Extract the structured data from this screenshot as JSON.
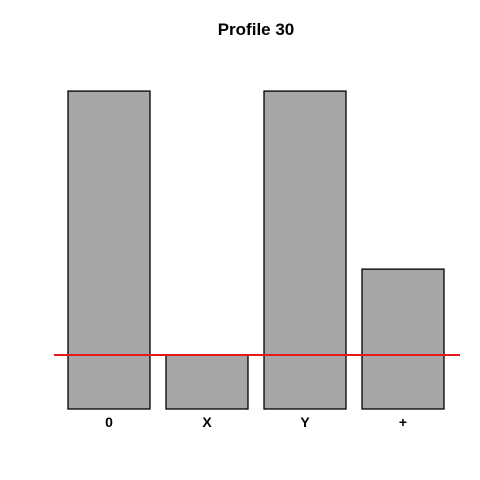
{
  "chart_data": {
    "type": "bar",
    "title": "Profile 30",
    "xlabel": "",
    "ylabel": "",
    "categories": [
      "0",
      "X",
      "Y",
      "+"
    ],
    "values": [
      1.0,
      0.17,
      1.0,
      0.44
    ],
    "ylim": [
      0,
      1.06
    ],
    "reference_line": 0.17,
    "grid": false,
    "colors": {
      "bar_fill": "#a6a6a6",
      "bar_stroke": "#000000",
      "reference_line": "#e31a1c",
      "text": "#000000"
    }
  }
}
